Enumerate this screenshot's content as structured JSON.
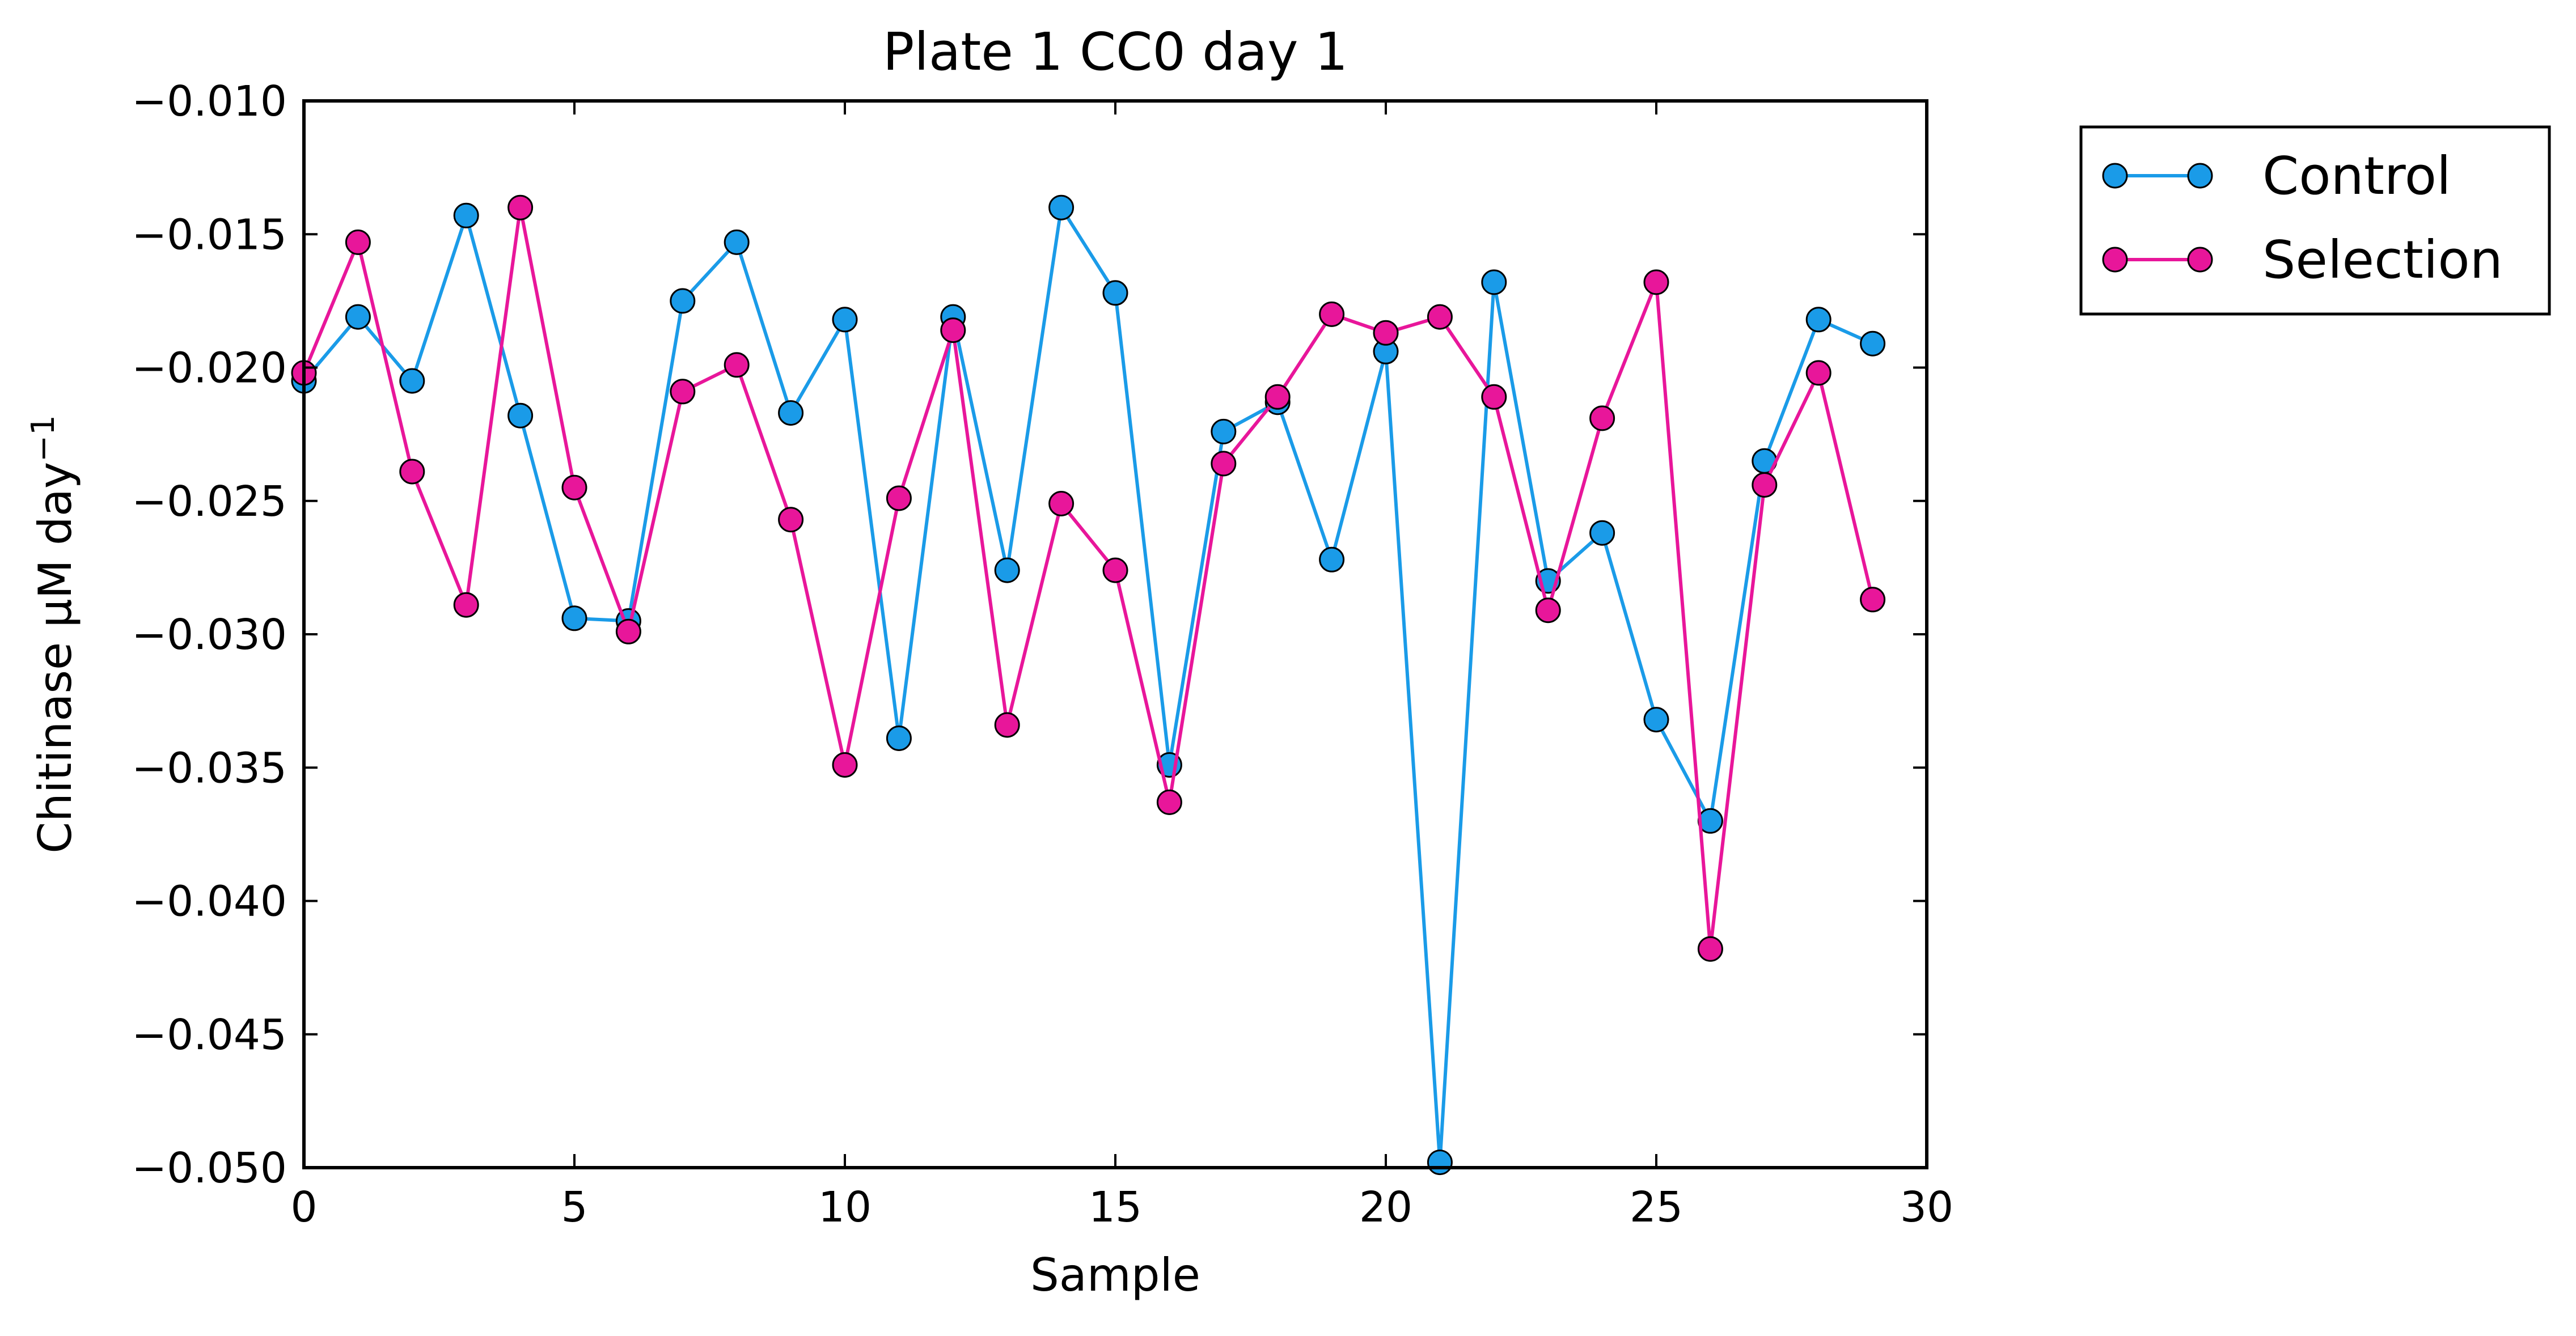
{
  "chart_data": {
    "type": "line",
    "title": "Plate 1 CC0 day 1",
    "xlabel": "Sample",
    "ylabel": "Chitinase μM day",
    "ylabel_superscript": "−1",
    "xlim": [
      0,
      30
    ],
    "ylim": [
      -0.05,
      -0.01
    ],
    "xticks": [
      0,
      5,
      10,
      15,
      20,
      25,
      30
    ],
    "xtick_labels": [
      "0",
      "5",
      "10",
      "15",
      "20",
      "25",
      "30"
    ],
    "yticks": [
      -0.05,
      -0.045,
      -0.04,
      -0.035,
      -0.03,
      -0.025,
      -0.02,
      -0.015,
      -0.01
    ],
    "ytick_labels": [
      "−0.050",
      "−0.045",
      "−0.040",
      "−0.035",
      "−0.030",
      "−0.025",
      "−0.020",
      "−0.015",
      "−0.010"
    ],
    "grid": false,
    "legend_position": "outside-right-top",
    "x": [
      0,
      1,
      2,
      3,
      4,
      5,
      6,
      7,
      8,
      9,
      10,
      11,
      12,
      13,
      14,
      15,
      16,
      17,
      18,
      19,
      20,
      21,
      22,
      23,
      24,
      25,
      26,
      27,
      28,
      29
    ],
    "series": [
      {
        "name": "Control",
        "color": "#1a9be8",
        "values": [
          -0.0205,
          -0.0181,
          -0.0205,
          -0.0143,
          -0.0218,
          -0.0294,
          -0.0295,
          -0.0175,
          -0.0153,
          -0.0217,
          -0.0182,
          -0.0339,
          -0.0181,
          -0.0276,
          -0.014,
          -0.0172,
          -0.0349,
          -0.0224,
          -0.0213,
          -0.0272,
          -0.0194,
          -0.0498,
          -0.0168,
          -0.028,
          -0.0262,
          -0.0332,
          -0.037,
          -0.0235,
          -0.0182,
          -0.0191
        ]
      },
      {
        "name": "Selection",
        "color": "#e8169a",
        "values": [
          -0.0202,
          -0.0153,
          -0.0239,
          -0.0289,
          -0.014,
          -0.0245,
          -0.0299,
          -0.0209,
          -0.0199,
          -0.0257,
          -0.0349,
          -0.0249,
          -0.0186,
          -0.0334,
          -0.0251,
          -0.0276,
          -0.0363,
          -0.0236,
          -0.0211,
          -0.018,
          -0.0187,
          -0.0181,
          -0.0211,
          -0.0291,
          -0.0219,
          -0.0168,
          -0.0418,
          -0.0244,
          -0.0202,
          -0.0287
        ]
      }
    ]
  }
}
